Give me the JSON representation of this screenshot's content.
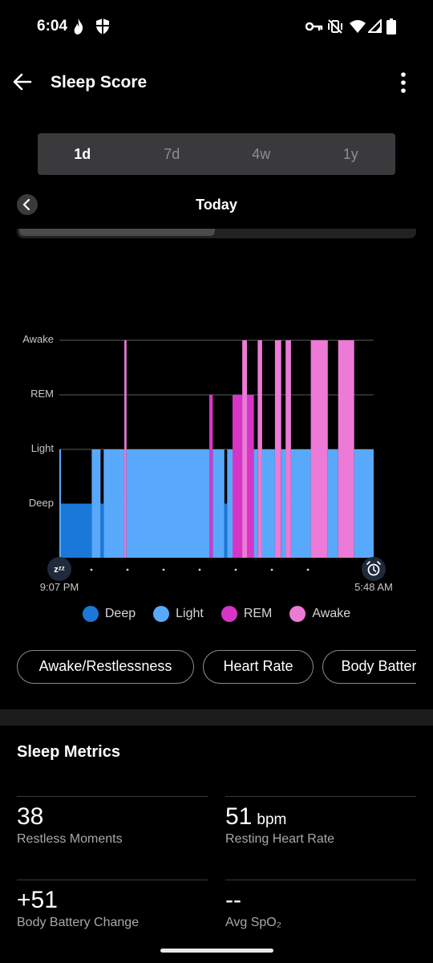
{
  "status_bar": {
    "time": "6:04",
    "left_icons": [
      "flame-icon",
      "shield-icon"
    ],
    "right_icons": [
      "vpn-key-icon",
      "vibrate-off-icon",
      "wifi-icon",
      "signal-icon",
      "battery-icon"
    ]
  },
  "app_bar": {
    "title": "Sleep Score",
    "back_icon": "back-arrow-icon",
    "menu_icon": "more-vertical-icon"
  },
  "period_tabs": [
    {
      "label": "1d",
      "active": true
    },
    {
      "label": "7d",
      "active": false
    },
    {
      "label": "4w",
      "active": false
    },
    {
      "label": "1y",
      "active": false
    }
  ],
  "date_nav": {
    "label": "Today",
    "prev_icon": "chevron-left-icon"
  },
  "chart_data": {
    "type": "sleep-stages",
    "y_labels": [
      "Awake",
      "REM",
      "Light",
      "Deep"
    ],
    "x_start_label": "9:07 PM",
    "x_end_label": "5:48 AM",
    "start_icon": "sleep-zzz-icon",
    "end_icon": "alarm-clock-icon",
    "grid": true,
    "colors": {
      "Deep": "#1a78d8",
      "Light": "#58a9fb",
      "REM": "#d735c7",
      "Awake": "#ec7ad6"
    },
    "segments": [
      {
        "stage": "Light",
        "start": 0.0,
        "end": 0.005
      },
      {
        "stage": "Deep",
        "start": 0.005,
        "end": 0.103
      },
      {
        "stage": "Light",
        "start": 0.103,
        "end": 0.131
      },
      {
        "stage": "Deep",
        "start": 0.131,
        "end": 0.141
      },
      {
        "stage": "Light",
        "start": 0.141,
        "end": 0.207
      },
      {
        "stage": "Awake",
        "start": 0.207,
        "end": 0.214
      },
      {
        "stage": "Light",
        "start": 0.214,
        "end": 0.477
      },
      {
        "stage": "REM",
        "start": 0.477,
        "end": 0.488
      },
      {
        "stage": "Light",
        "start": 0.488,
        "end": 0.525
      },
      {
        "stage": "Deep",
        "start": 0.525,
        "end": 0.534
      },
      {
        "stage": "Light",
        "start": 0.534,
        "end": 0.551
      },
      {
        "stage": "REM",
        "start": 0.551,
        "end": 0.582
      },
      {
        "stage": "Awake",
        "start": 0.582,
        "end": 0.597
      },
      {
        "stage": "REM",
        "start": 0.597,
        "end": 0.619
      },
      {
        "stage": "Light",
        "start": 0.619,
        "end": 0.631
      },
      {
        "stage": "Awake",
        "start": 0.631,
        "end": 0.645
      },
      {
        "stage": "Light",
        "start": 0.645,
        "end": 0.686
      },
      {
        "stage": "Awake",
        "start": 0.686,
        "end": 0.706
      },
      {
        "stage": "Light",
        "start": 0.706,
        "end": 0.72
      },
      {
        "stage": "Awake",
        "start": 0.72,
        "end": 0.737
      },
      {
        "stage": "Light",
        "start": 0.737,
        "end": 0.8
      },
      {
        "stage": "Awake",
        "start": 0.8,
        "end": 0.854
      },
      {
        "stage": "Light",
        "start": 0.854,
        "end": 0.887
      },
      {
        "stage": "Awake",
        "start": 0.887,
        "end": 0.938
      },
      {
        "stage": "Light",
        "start": 0.938,
        "end": 1.0
      }
    ]
  },
  "legend": [
    {
      "label": "Deep",
      "color": "#1a78d8"
    },
    {
      "label": "Light",
      "color": "#58a9fb"
    },
    {
      "label": "REM",
      "color": "#d735c7"
    },
    {
      "label": "Awake",
      "color": "#ec7ad6"
    }
  ],
  "filter_chips": [
    "Awake/Restlessness",
    "Heart Rate",
    "Body Battery"
  ],
  "sleep_metrics": {
    "title": "Sleep Metrics",
    "items": [
      {
        "value": "38",
        "unit": "",
        "label": "Restless Moments"
      },
      {
        "value": "51",
        "unit": "bpm",
        "label": "Resting Heart Rate"
      },
      {
        "value": "+51",
        "unit": "",
        "label": "Body Battery Change"
      },
      {
        "value": "--",
        "unit": "",
        "label": "Avg SpO₂"
      }
    ]
  }
}
